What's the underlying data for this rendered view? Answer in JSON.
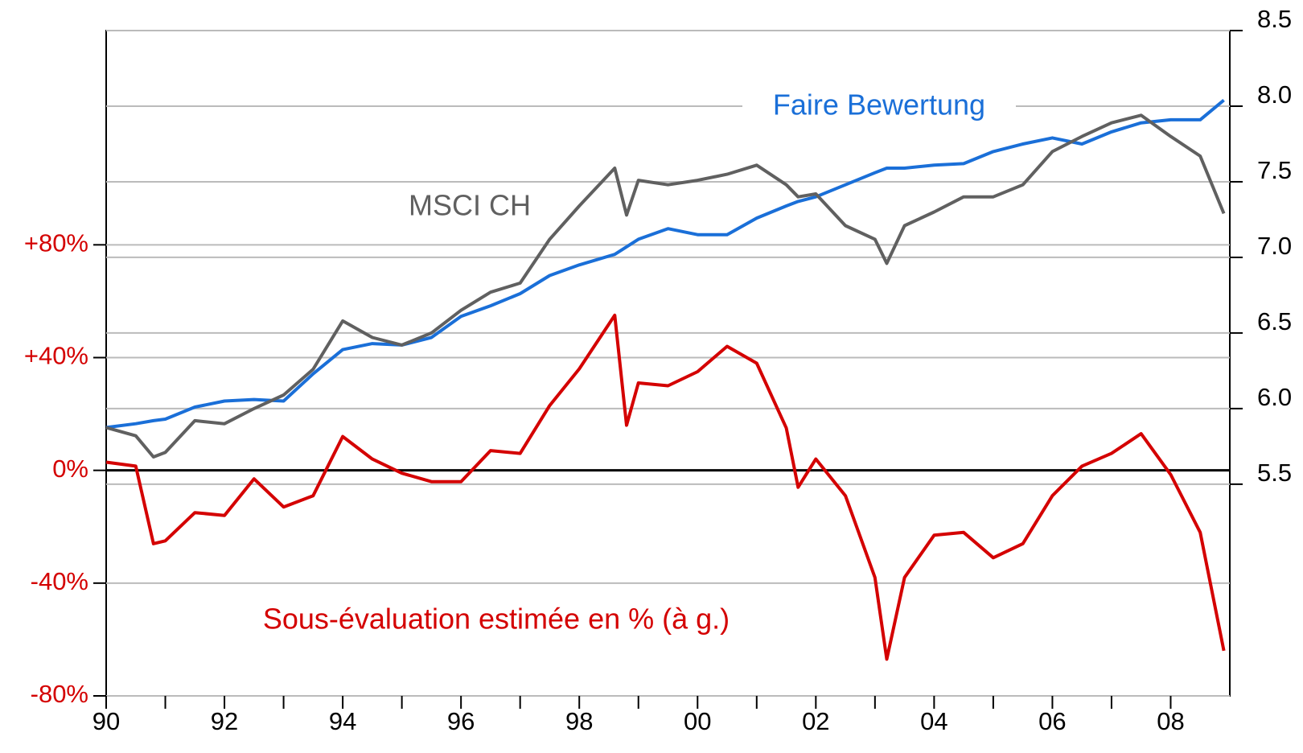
{
  "chart_data": {
    "type": "line",
    "x": [
      1990,
      1990.5,
      1990.8,
      1991,
      1991.5,
      1992,
      1992.5,
      1993,
      1993.5,
      1994,
      1994.5,
      1995,
      1995.5,
      1996,
      1996.5,
      1997,
      1997.5,
      1998,
      1998.6,
      1998.8,
      1999,
      1999.5,
      2000,
      2000.5,
      2001,
      2001.5,
      2001.7,
      2002,
      2002.5,
      2003,
      2003.2,
      2003.5,
      2004,
      2004.5,
      2005,
      2005.5,
      2006,
      2006.5,
      2007,
      2007.5,
      2008,
      2008.5,
      2008.9
    ],
    "series": [
      {
        "name": "Faire Bewertung",
        "color": "#1a6fd8",
        "axis": "y2",
        "values": [
          5.875,
          5.9,
          5.92,
          5.93,
          6.01,
          6.05,
          6.06,
          6.05,
          6.23,
          6.39,
          6.43,
          6.42,
          6.47,
          6.61,
          6.68,
          6.76,
          6.88,
          6.95,
          7.02,
          7.07,
          7.12,
          7.19,
          7.15,
          7.15,
          7.26,
          7.34,
          7.37,
          7.4,
          7.48,
          7.56,
          7.59,
          7.59,
          7.61,
          7.62,
          7.7,
          7.75,
          7.79,
          7.75,
          7.83,
          7.89,
          7.91,
          7.91,
          8.04
        ]
      },
      {
        "name": "MSCI CH",
        "color": "#606060",
        "axis": "y2",
        "values": [
          5.875,
          5.82,
          5.68,
          5.71,
          5.92,
          5.9,
          6.0,
          6.09,
          6.26,
          6.58,
          6.47,
          6.42,
          6.5,
          6.65,
          6.77,
          6.83,
          7.12,
          7.34,
          7.59,
          7.28,
          7.51,
          7.48,
          7.51,
          7.55,
          7.61,
          7.48,
          7.4,
          7.42,
          7.21,
          7.12,
          6.96,
          7.21,
          7.3,
          7.4,
          7.4,
          7.48,
          7.7,
          7.8,
          7.89,
          7.94,
          7.8,
          7.67,
          7.29
        ]
      },
      {
        "name": "Sous-évaluation estimée en % (à g.)",
        "color": "#d40000",
        "axis": "y",
        "values": [
          2.9,
          1.5,
          -26,
          -25,
          -15,
          -16,
          -3,
          -13,
          -9,
          12,
          4,
          -1,
          -4,
          -4,
          7,
          6,
          23,
          36,
          55,
          16,
          31,
          30,
          35,
          44,
          38,
          15,
          -6,
          4,
          -9,
          -38,
          -67,
          -38,
          -23,
          -22,
          -31,
          -26,
          -9,
          1.5,
          6,
          13,
          -1.5,
          -22,
          -64
        ]
      }
    ],
    "xlim": [
      1990,
      2009
    ],
    "xticks": [
      {
        "value": 1990,
        "label": "90"
      },
      {
        "value": 1992,
        "label": "92"
      },
      {
        "value": 1994,
        "label": "94"
      },
      {
        "value": 1996,
        "label": "96"
      },
      {
        "value": 1998,
        "label": "98"
      },
      {
        "value": 2000,
        "label": "00"
      },
      {
        "value": 2002,
        "label": "02"
      },
      {
        "value": 2004,
        "label": "04"
      },
      {
        "value": 2006,
        "label": "06"
      },
      {
        "value": 2008,
        "label": "08"
      }
    ],
    "minor_xticks": [
      1991,
      1993,
      1995,
      1997,
      1999,
      2001,
      2003,
      2005,
      2007
    ],
    "ylim": [
      -80,
      156
    ],
    "yticks": [
      {
        "value": -80,
        "label": "-80%"
      },
      {
        "value": -40,
        "label": "-40%"
      },
      {
        "value": 0,
        "label": "0%"
      },
      {
        "value": 40,
        "label": "+40%"
      },
      {
        "value": 80,
        "label": "+80%"
      }
    ],
    "y2lim": [
      4.1,
      8.5
    ],
    "y2ticks": [
      5.5,
      {
        "value": 6,
        "label": "6.0"
      },
      6.5,
      {
        "value": 7,
        "label": "7.0"
      },
      7.5,
      {
        "value": 8,
        "label": "8.0"
      },
      8.5
    ],
    "grid": true
  }
}
